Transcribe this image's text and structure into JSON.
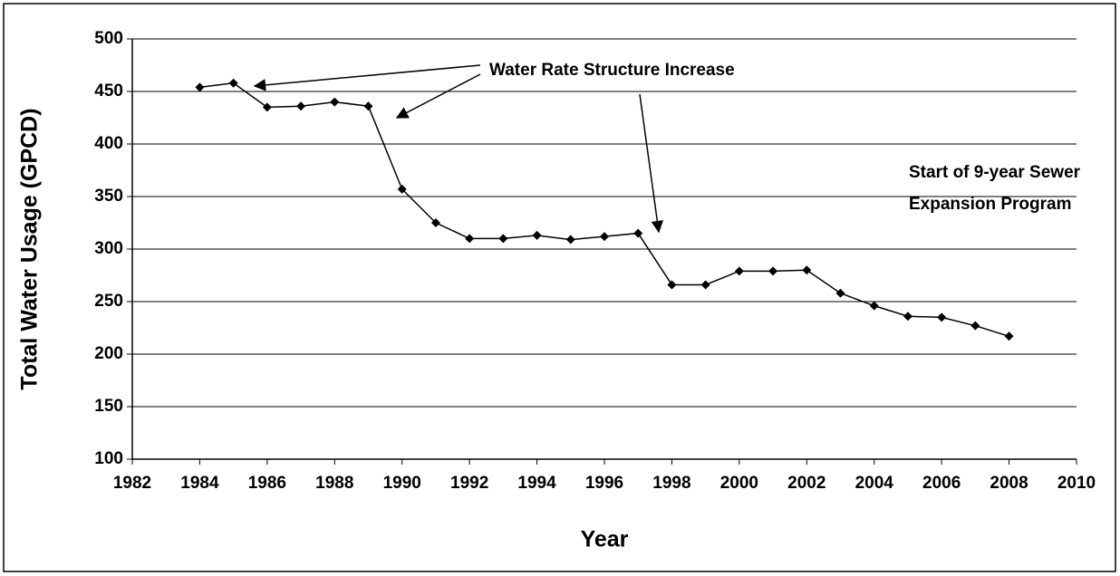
{
  "chart_data": {
    "type": "line",
    "x_label": "Year",
    "y_label": "Total Water Usage (GPCD)",
    "x": [
      1984,
      1985,
      1986,
      1987,
      1988,
      1989,
      1990,
      1991,
      1992,
      1993,
      1994,
      1995,
      1996,
      1997,
      1998,
      1999,
      2000,
      2001,
      2002,
      2003,
      2004,
      2005,
      2006,
      2007,
      2008
    ],
    "series": [
      {
        "color": "#000000",
        "values": [
          454,
          458,
          435,
          436,
          440,
          436,
          357,
          325,
          310,
          310,
          313,
          309,
          312,
          315,
          266,
          266,
          279,
          279,
          280,
          258,
          246,
          236,
          235,
          227,
          217
        ]
      }
    ],
    "xlim": [
      1982,
      2010
    ],
    "xticks": [
      1982,
      1984,
      1986,
      1988,
      1990,
      1992,
      1994,
      1996,
      1998,
      2000,
      2002,
      2004,
      2006,
      2008,
      2010
    ],
    "ylim": [
      100,
      500
    ],
    "yticks": [
      100,
      150,
      200,
      250,
      300,
      350,
      400,
      450,
      500
    ],
    "grid": true,
    "annotations": [
      "Water Rate Structure Increase",
      "Start of 9-year Sewer",
      "Expansion Program"
    ]
  }
}
